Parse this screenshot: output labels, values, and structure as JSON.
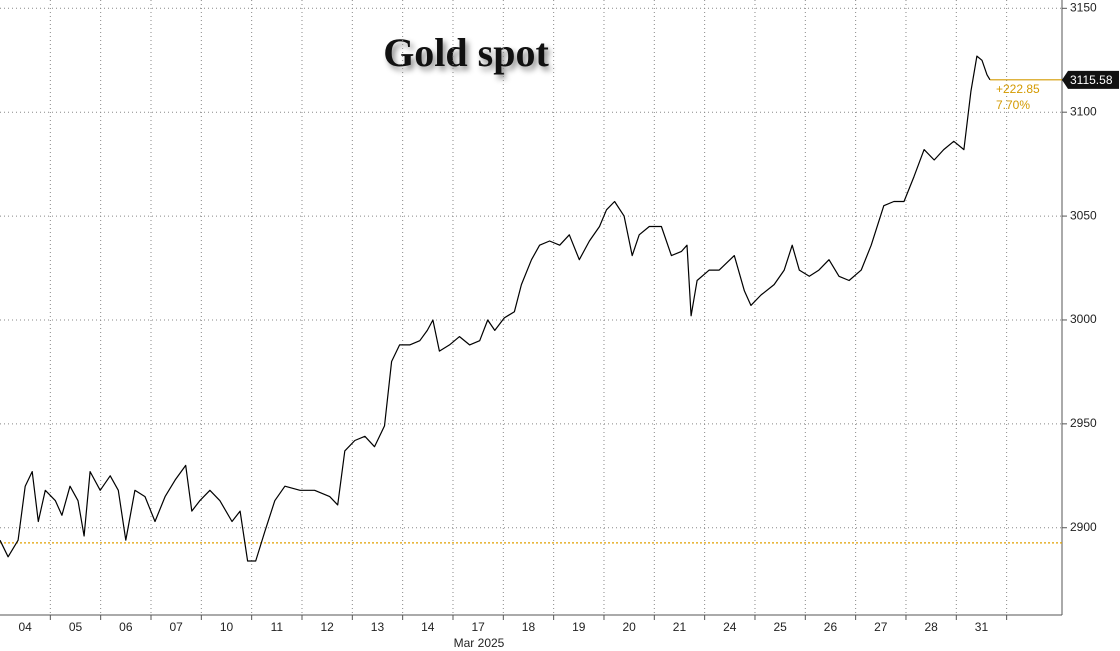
{
  "chart_data": {
    "type": "line",
    "title": "Gold spot",
    "xlabel": "Mar 2025",
    "xlim": [
      -0.5,
      20.6
    ],
    "xticks": [
      {
        "value": 0,
        "label": "04"
      },
      {
        "value": 1,
        "label": "05"
      },
      {
        "value": 2,
        "label": "06"
      },
      {
        "value": 3,
        "label": "07"
      },
      {
        "value": 4,
        "label": "10"
      },
      {
        "value": 5,
        "label": "11"
      },
      {
        "value": 6,
        "label": "12"
      },
      {
        "value": 7,
        "label": "13"
      },
      {
        "value": 8,
        "label": "14"
      },
      {
        "value": 9,
        "label": "17"
      },
      {
        "value": 10,
        "label": "18"
      },
      {
        "value": 11,
        "label": "19"
      },
      {
        "value": 12,
        "label": "20"
      },
      {
        "value": 13,
        "label": "21"
      },
      {
        "value": 14,
        "label": "24"
      },
      {
        "value": 15,
        "label": "25"
      },
      {
        "value": 16,
        "label": "26"
      },
      {
        "value": 17,
        "label": "27"
      },
      {
        "value": 18,
        "label": "28"
      },
      {
        "value": 19,
        "label": "31"
      }
    ],
    "ylim": [
      2858,
      3154
    ],
    "yticks": [
      2900,
      2950,
      3000,
      3050,
      3100,
      3150
    ],
    "grid": true,
    "x": [
      -0.5,
      -0.34,
      -0.14,
      0,
      0.14,
      0.26,
      0.4,
      0.6,
      0.73,
      0.89,
      1.05,
      1.17,
      1.29,
      1.49,
      1.69,
      1.85,
      2.0,
      2.18,
      2.38,
      2.58,
      2.78,
      2.98,
      3.19,
      3.31,
      3.47,
      3.67,
      3.87,
      4.11,
      4.27,
      4.42,
      4.58,
      4.76,
      4.96,
      5.16,
      5.46,
      5.75,
      6.05,
      6.21,
      6.35,
      6.55,
      6.75,
      6.94,
      7.14,
      7.28,
      7.44,
      7.64,
      7.84,
      7.99,
      8.1,
      8.23,
      8.43,
      8.63,
      8.83,
      9.03,
      9.19,
      9.33,
      9.52,
      9.72,
      9.86,
      10.06,
      10.22,
      10.42,
      10.62,
      10.81,
      11.01,
      11.21,
      11.41,
      11.55,
      11.71,
      11.9,
      12.06,
      12.2,
      12.4,
      12.64,
      12.84,
      13.04,
      13.15,
      13.23,
      13.35,
      13.59,
      13.79,
      14.09,
      14.29,
      14.42,
      14.62,
      14.88,
      15.08,
      15.24,
      15.38,
      15.58,
      15.77,
      15.97,
      16.17,
      16.37,
      16.61,
      16.81,
      17.06,
      17.26,
      17.46,
      17.66,
      17.86,
      18.06,
      18.25,
      18.45,
      18.65,
      18.79,
      18.91,
      19.01,
      19.11,
      19.17
    ],
    "series": [
      {
        "name": "Gold spot",
        "color": "#000000",
        "values": [
          2894,
          2886,
          2894,
          2920,
          2927,
          2903,
          2918,
          2913,
          2906,
          2920,
          2913,
          2896,
          2927,
          2918,
          2925,
          2918,
          2894,
          2918,
          2915,
          2903,
          2915,
          2923,
          2930,
          2908,
          2913,
          2918,
          2913,
          2903,
          2908,
          2884,
          2884,
          2898,
          2913,
          2920,
          2918,
          2918,
          2915,
          2911,
          2937,
          2942,
          2944,
          2939,
          2949,
          2980,
          2988,
          2988,
          2990,
          2995,
          3000,
          2985,
          2988,
          2992,
          2988,
          2990,
          3000,
          2995,
          3001,
          3004,
          3017,
          3029,
          3036,
          3038,
          3036,
          3041,
          3029,
          3038,
          3045,
          3053,
          3057,
          3050,
          3031,
          3041,
          3045,
          3045,
          3031,
          3033,
          3036,
          3002,
          3019,
          3024,
          3024,
          3031,
          3014,
          3007,
          3012,
          3017,
          3024,
          3036,
          3024,
          3021,
          3024,
          3029,
          3021,
          3019,
          3024,
          3036,
          3055,
          3057,
          3057,
          3069,
          3082,
          3077,
          3082,
          3086,
          3082,
          3110,
          3127,
          3125,
          3118,
          3115.58
        ]
      }
    ],
    "reference_line": {
      "value": 2892.73,
      "color": "#e0a100"
    },
    "annotations": [
      "+222.85",
      "7.70%"
    ],
    "annotation_color": "#d49a00"
  }
}
